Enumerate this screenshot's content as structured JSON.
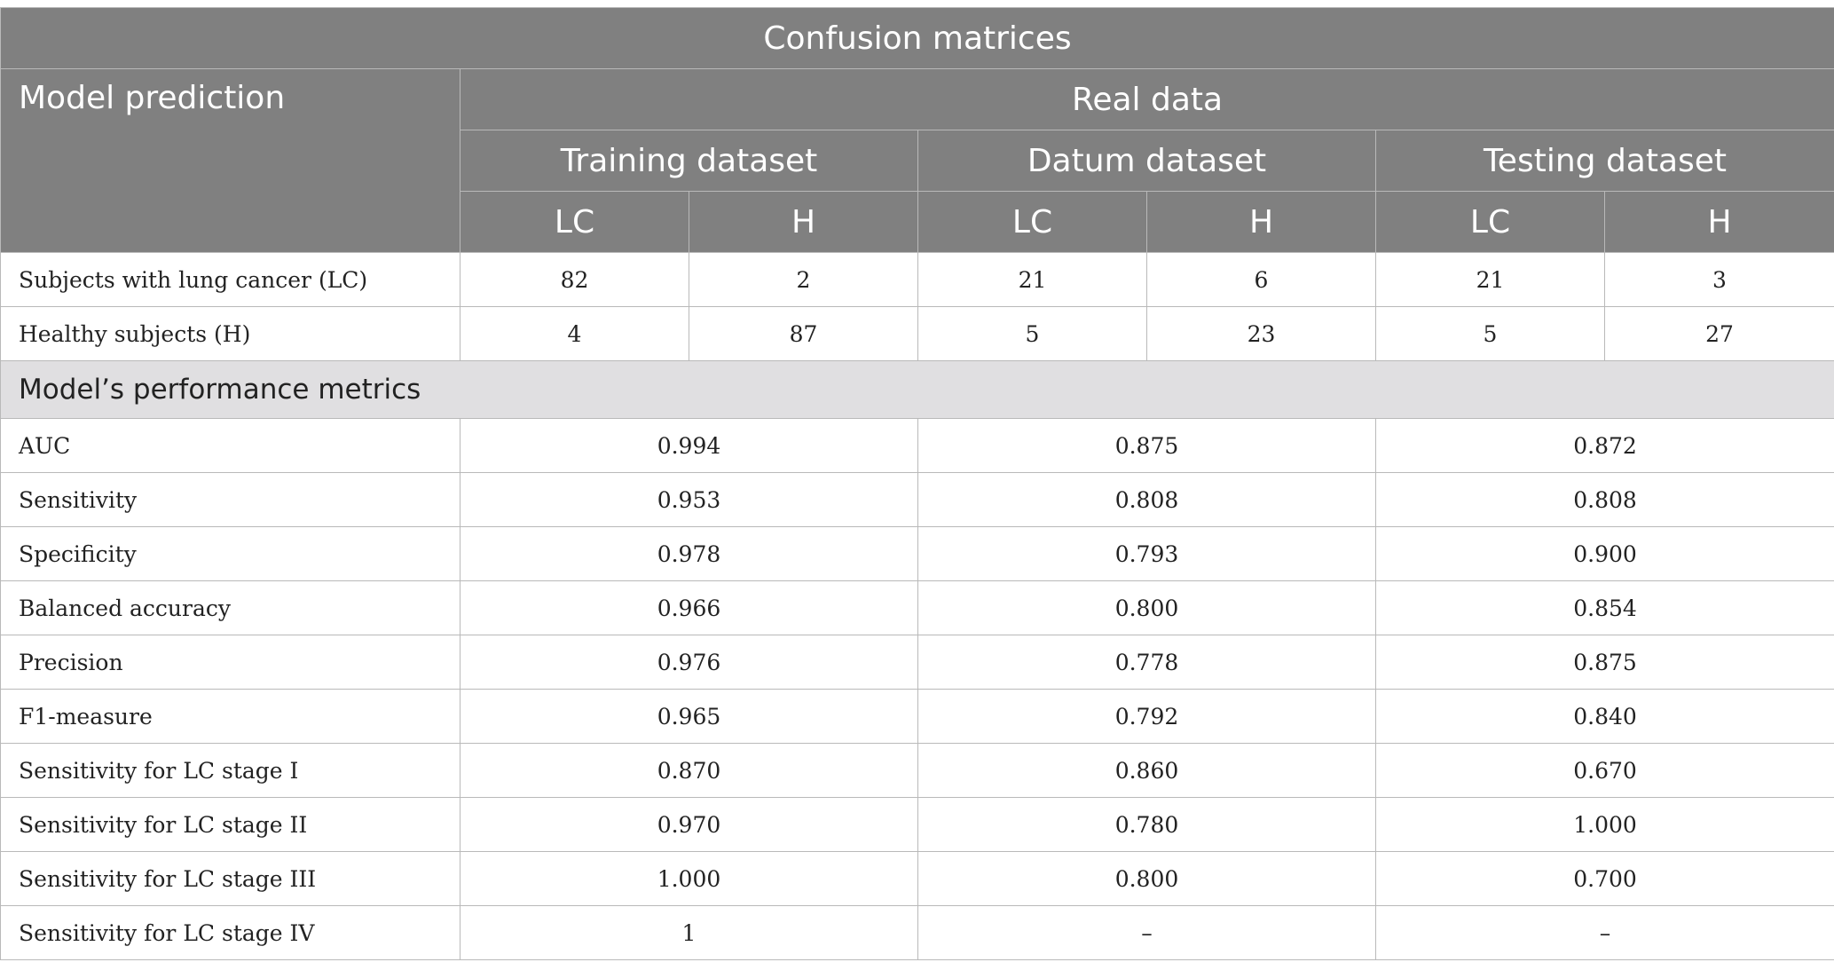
{
  "title": "Confusion matrices",
  "corner_label": "Model prediction",
  "real_data_label": "Real data",
  "datasets": [
    "Training dataset",
    "Datum dataset",
    "Testing dataset"
  ],
  "class_labels": [
    "LC",
    "H",
    "LC",
    "H",
    "LC",
    "H"
  ],
  "confusion_rows": [
    {
      "label": "Subjects with lung cancer (LC)",
      "values": [
        "82",
        "2",
        "21",
        "6",
        "21",
        "3"
      ]
    },
    {
      "label": "Healthy subjects (H)",
      "values": [
        "4",
        "87",
        "5",
        "23",
        "5",
        "27"
      ]
    }
  ],
  "metrics_title": "Model’s performance metrics",
  "metric_rows": [
    {
      "label": "AUC",
      "values": [
        "0.994",
        "0.875",
        "0.872"
      ]
    },
    {
      "label": "Sensitivity",
      "values": [
        "0.953",
        "0.808",
        "0.808"
      ]
    },
    {
      "label": "Specificity",
      "values": [
        "0.978",
        "0.793",
        "0.900"
      ]
    },
    {
      "label": "Balanced accuracy",
      "values": [
        "0.966",
        "0.800",
        "0.854"
      ]
    },
    {
      "label": "Precision",
      "values": [
        "0.976",
        "0.778",
        "0.875"
      ]
    },
    {
      "label": "F1-measure",
      "values": [
        "0.965",
        "0.792",
        "0.840"
      ]
    },
    {
      "label": "Sensitivity for LC stage I",
      "values": [
        "0.870",
        "0.860",
        "0.670"
      ]
    },
    {
      "label": "Sensitivity for LC stage II",
      "values": [
        "0.970",
        "0.780",
        "1.000"
      ]
    },
    {
      "label": "Sensitivity for LC stage III",
      "values": [
        "1.000",
        "0.800",
        "0.700"
      ]
    },
    {
      "label": "Sensitivity for LC stage IV",
      "values": [
        "1",
        "–",
        "–"
      ]
    }
  ],
  "colors": {
    "header_bg": "#808080",
    "section_bg": "#e0dfe1",
    "grid": "#b9b9b9"
  }
}
